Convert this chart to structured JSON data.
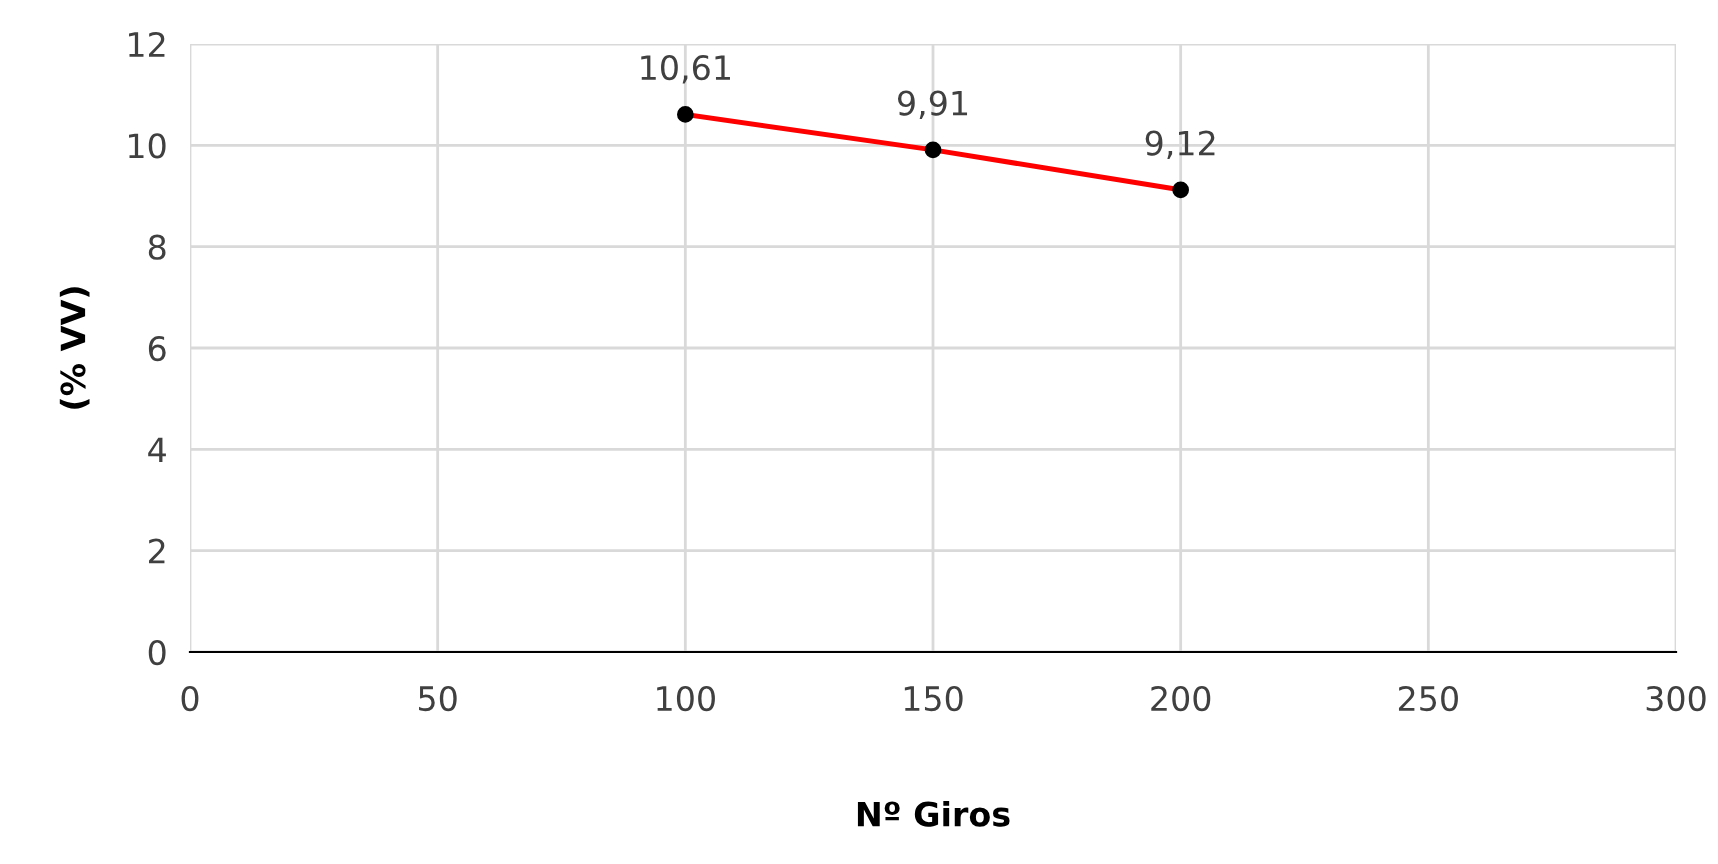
{
  "chart_data": {
    "type": "line",
    "xlabel": "Nº Giros",
    "ylabel": "(% VV)",
    "x": [
      100,
      150,
      200
    ],
    "series": [
      {
        "color": "#ff0000",
        "values": [
          10.61,
          9.91,
          9.12
        ],
        "value_labels": [
          "10,61",
          "9,91",
          "9,12"
        ]
      }
    ],
    "xlim": [
      0,
      300
    ],
    "xticks": [
      0,
      50,
      100,
      150,
      200,
      250,
      300
    ],
    "ylim": [
      0,
      12
    ],
    "yticks": [
      0,
      2,
      4,
      6,
      8,
      10,
      12
    ],
    "grid": true,
    "marker": "circle",
    "line_style": "solid"
  }
}
